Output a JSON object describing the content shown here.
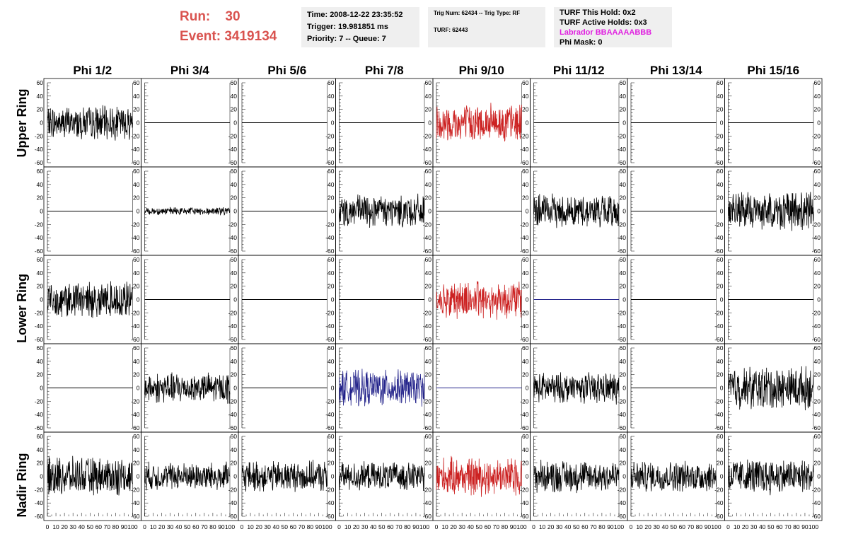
{
  "header": {
    "run_label": "Run:",
    "run_value": "30",
    "event_label": "Event:",
    "event_value": "3419134",
    "time": "Time: 2008-12-22 23:35:52",
    "trigger": "Trigger: 19.981851 ms",
    "priority": "Priority: 7 -- Queue: 7",
    "trig_num": "Trig Num: 62434 -- Trig Type: RF",
    "turf": "TURF: 62443",
    "turf_this_hold": "TURF This Hold: 0x2",
    "turf_active_holds": "TURF Active Holds: 0x3",
    "labrador": "Labrador BBAAAAABBB",
    "phi_mask": "Phi Mask: 0"
  },
  "colors": {
    "header_red": "#d9534f",
    "info_bg": "#efefef",
    "magenta": "#e020e0",
    "trace_black": "#000000",
    "trace_red": "#cc2222",
    "trace_blue": "#22228a"
  },
  "chart_data": {
    "type": "line",
    "column_labels": [
      "Phi 1/2",
      "Phi 3/4",
      "Phi 5/6",
      "Phi 7/8",
      "Phi 9/10",
      "Phi 11/12",
      "Phi 13/14",
      "Phi 15/16"
    ],
    "ring_labels": [
      "Upper Ring",
      "Lower Ring",
      "Nadir Ring"
    ],
    "xlim": [
      0,
      100
    ],
    "ylim": [
      -60,
      60
    ],
    "x_ticks": [
      "0",
      "10",
      "20",
      "30",
      "40",
      "50",
      "60",
      "70",
      "80",
      "90",
      "100"
    ],
    "y_ticks": [
      "-60",
      "-40",
      "-20",
      "0",
      "20",
      "40",
      "60"
    ],
    "grid": false,
    "panel_rows": [
      [
        {
          "trace": "black",
          "amplitude": 13
        },
        {
          "trace": "flat"
        },
        {
          "trace": "flat"
        },
        {
          "trace": "flat"
        },
        {
          "trace": "red",
          "amplitude": 15
        },
        {
          "trace": "flat"
        },
        {
          "trace": "flat"
        },
        {
          "trace": "flat"
        }
      ],
      [
        {
          "trace": "flat"
        },
        {
          "trace": "black",
          "amplitude": 3
        },
        {
          "trace": "flat"
        },
        {
          "trace": "black",
          "amplitude": 13
        },
        {
          "trace": "flat"
        },
        {
          "trace": "black",
          "amplitude": 13
        },
        {
          "trace": "flat"
        },
        {
          "trace": "black",
          "amplitude": 15
        }
      ],
      [
        {
          "trace": "black",
          "amplitude": 14
        },
        {
          "trace": "flat"
        },
        {
          "trace": "flat"
        },
        {
          "trace": "flat"
        },
        {
          "trace": "red",
          "amplitude": 15
        },
        {
          "trace": "blue-flat"
        },
        {
          "trace": "flat"
        },
        {
          "trace": "flat"
        }
      ],
      [
        {
          "trace": "flat"
        },
        {
          "trace": "black",
          "amplitude": 12
        },
        {
          "trace": "flat"
        },
        {
          "trace": "blue",
          "amplitude": 14
        },
        {
          "trace": "blue-flat"
        },
        {
          "trace": "black",
          "amplitude": 12
        },
        {
          "trace": "flat"
        },
        {
          "trace": "black",
          "amplitude": 17
        }
      ],
      [
        {
          "trace": "black",
          "amplitude": 15
        },
        {
          "trace": "black",
          "amplitude": 11
        },
        {
          "trace": "black",
          "amplitude": 12
        },
        {
          "trace": "black",
          "amplitude": 11
        },
        {
          "trace": "red",
          "amplitude": 15
        },
        {
          "trace": "black",
          "amplitude": 13
        },
        {
          "trace": "black",
          "amplitude": 12
        },
        {
          "trace": "black",
          "amplitude": 14
        }
      ]
    ]
  }
}
